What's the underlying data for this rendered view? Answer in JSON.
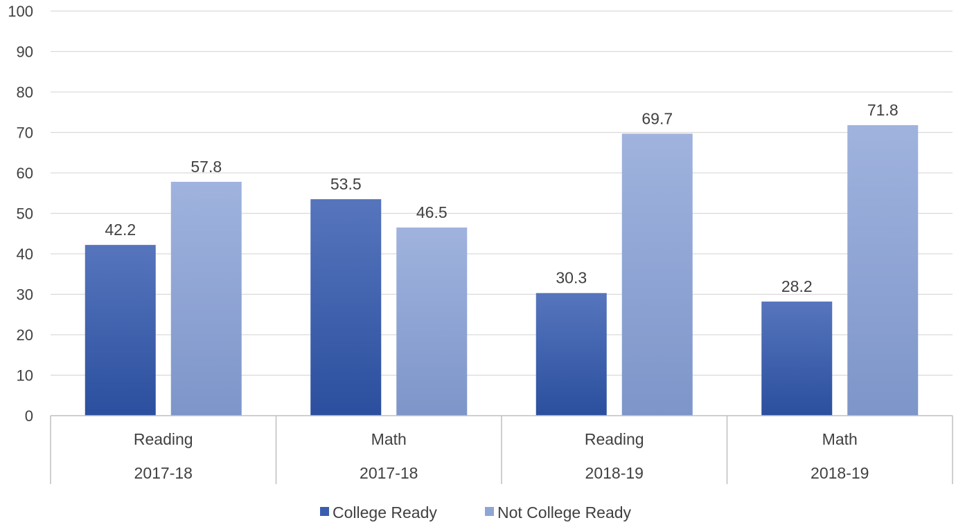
{
  "chart_data": {
    "type": "bar",
    "categories": [
      {
        "label": "Reading",
        "group": "2017-18"
      },
      {
        "label": "Math",
        "group": "2017-18"
      },
      {
        "label": "Reading",
        "group": "2018-19"
      },
      {
        "label": "Math",
        "group": "2018-19"
      }
    ],
    "series": [
      {
        "name": "College Ready",
        "values": [
          42.2,
          53.5,
          30.3,
          28.2
        ],
        "color": "#3a5db0"
      },
      {
        "name": "Not College Ready",
        "values": [
          57.8,
          46.5,
          69.7,
          71.8
        ],
        "color": "#8fa5d6"
      }
    ],
    "title": "",
    "xlabel": "",
    "ylabel": "",
    "ylim": [
      0,
      100
    ],
    "yticks": [
      0,
      10,
      20,
      30,
      40,
      50,
      60,
      70,
      80,
      90,
      100
    ],
    "grid": true,
    "legend": "bottom",
    "data_labels": true
  }
}
